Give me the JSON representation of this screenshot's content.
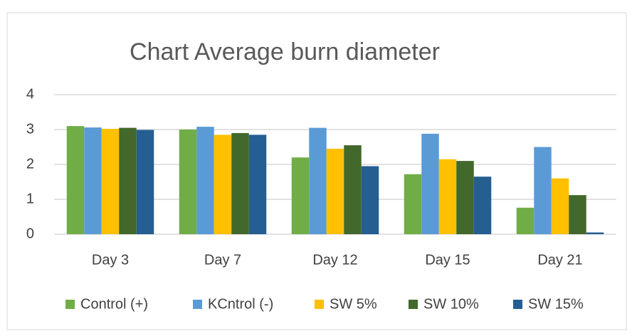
{
  "chart_data": {
    "type": "bar",
    "title": "Chart Average burn diameter",
    "categories": [
      "Day 3",
      "Day 7",
      "Day 12",
      "Day 15",
      "Day 21"
    ],
    "series": [
      {
        "name": "Control (+)",
        "color": "#70ad47",
        "values": [
          3.1,
          3.0,
          2.2,
          1.72,
          0.76
        ]
      },
      {
        "name": "KCntrol (-)",
        "color": "#5b9bd5",
        "values": [
          3.06,
          3.08,
          3.05,
          2.88,
          2.5
        ]
      },
      {
        "name": "SW 5%",
        "color": "#ffc000",
        "values": [
          3.02,
          2.85,
          2.45,
          2.15,
          1.6
        ]
      },
      {
        "name": "SW 10%",
        "color": "#43682b",
        "values": [
          3.05,
          2.9,
          2.55,
          2.1,
          1.12
        ]
      },
      {
        "name": "SW 15%",
        "color": "#255e91",
        "values": [
          2.99,
          2.85,
          1.95,
          1.65,
          0.05
        ]
      }
    ],
    "ylim": [
      0,
      4
    ],
    "yticks": [
      0,
      1,
      2,
      3,
      4
    ],
    "grid": true,
    "legend": "bottom"
  }
}
